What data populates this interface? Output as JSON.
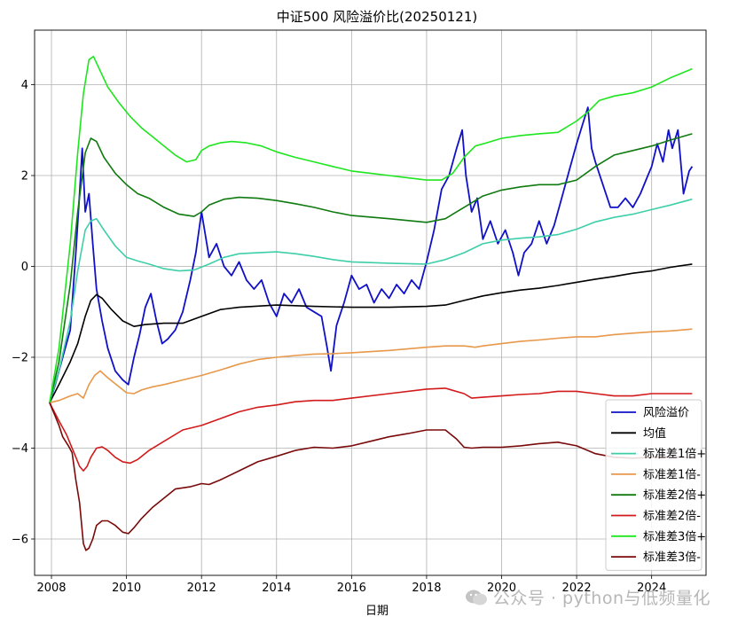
{
  "chart_data": {
    "type": "line",
    "title": "中证500 风险溢价比(20250121)",
    "xlabel": "日期",
    "ylabel": "",
    "xlim": [
      2007.55,
      2025.45
    ],
    "ylim": [
      -6.8,
      5.2
    ],
    "xticks": [
      2008,
      2010,
      2012,
      2014,
      2016,
      2018,
      2020,
      2022,
      2024
    ],
    "yticks": [
      -6,
      -4,
      -2,
      0,
      2,
      4
    ],
    "grid": true,
    "legend_position": "lower-right",
    "series": [
      {
        "name": "风险溢价",
        "color": "#1010c8",
        "x": [
          2007.95,
          2008.1,
          2008.3,
          2008.5,
          2008.65,
          2008.75,
          2008.82,
          2008.9,
          2009.0,
          2009.1,
          2009.2,
          2009.35,
          2009.5,
          2009.7,
          2009.9,
          2010.05,
          2010.2,
          2010.35,
          2010.5,
          2010.65,
          2010.8,
          2010.95,
          2011.1,
          2011.3,
          2011.5,
          2011.7,
          2011.85,
          2012.0,
          2012.2,
          2012.4,
          2012.6,
          2012.8,
          2013.0,
          2013.2,
          2013.4,
          2013.6,
          2013.8,
          2014.0,
          2014.2,
          2014.4,
          2014.6,
          2014.8,
          2015.0,
          2015.2,
          2015.35,
          2015.45,
          2015.6,
          2015.8,
          2016.0,
          2016.2,
          2016.4,
          2016.6,
          2016.8,
          2017.0,
          2017.2,
          2017.4,
          2017.6,
          2017.8,
          2018.0,
          2018.2,
          2018.4,
          2018.6,
          2018.8,
          2018.95,
          2019.05,
          2019.2,
          2019.35,
          2019.5,
          2019.7,
          2019.9,
          2020.1,
          2020.3,
          2020.45,
          2020.6,
          2020.8,
          2021.0,
          2021.2,
          2021.4,
          2021.6,
          2021.8,
          2022.0,
          2022.15,
          2022.3,
          2022.4,
          2022.5,
          2022.7,
          2022.9,
          2023.1,
          2023.3,
          2023.5,
          2023.7,
          2023.9,
          2024.0,
          2024.15,
          2024.3,
          2024.45,
          2024.55,
          2024.7,
          2024.85,
          2025.0,
          2025.08
        ],
        "values": [
          -3.0,
          -2.6,
          -2.0,
          -1.4,
          0.3,
          1.6,
          2.6,
          1.2,
          1.6,
          0.5,
          -0.5,
          -1.2,
          -1.8,
          -2.3,
          -2.5,
          -2.6,
          -2.0,
          -1.5,
          -0.9,
          -0.6,
          -1.2,
          -1.7,
          -1.6,
          -1.4,
          -1.0,
          -0.3,
          0.3,
          1.2,
          0.2,
          0.5,
          0.0,
          -0.2,
          0.1,
          -0.3,
          -0.5,
          -0.3,
          -0.8,
          -1.1,
          -0.6,
          -0.8,
          -0.5,
          -0.9,
          -1.0,
          -1.1,
          -1.8,
          -2.3,
          -1.3,
          -0.8,
          -0.2,
          -0.5,
          -0.4,
          -0.8,
          -0.5,
          -0.7,
          -0.4,
          -0.6,
          -0.3,
          -0.5,
          0.1,
          0.8,
          1.7,
          2.0,
          2.6,
          3.0,
          2.0,
          1.2,
          1.5,
          0.6,
          1.0,
          0.5,
          0.8,
          0.3,
          -0.2,
          0.3,
          0.5,
          1.0,
          0.5,
          0.9,
          1.5,
          2.1,
          2.7,
          3.1,
          3.5,
          2.6,
          2.3,
          1.8,
          1.3,
          1.3,
          1.5,
          1.3,
          1.6,
          2.0,
          2.2,
          2.7,
          2.3,
          3.0,
          2.6,
          3.0,
          1.6,
          2.1,
          2.2
        ]
      },
      {
        "name": "均值",
        "color": "#000000",
        "x": [
          2007.95,
          2008.2,
          2008.5,
          2008.7,
          2008.9,
          2009.05,
          2009.2,
          2009.35,
          2009.6,
          2009.9,
          2010.2,
          2010.5,
          2011.0,
          2011.5,
          2012.0,
          2012.5,
          2013.0,
          2014.0,
          2015.0,
          2016.0,
          2017.0,
          2018.0,
          2018.5,
          2019.0,
          2019.5,
          2020.0,
          2020.5,
          2021.0,
          2021.5,
          2022.0,
          2022.5,
          2023.0,
          2023.5,
          2024.0,
          2024.5,
          2025.08
        ],
        "values": [
          -3.0,
          -2.6,
          -2.1,
          -1.7,
          -1.1,
          -0.75,
          -0.62,
          -0.7,
          -0.95,
          -1.2,
          -1.32,
          -1.28,
          -1.25,
          -1.25,
          -1.1,
          -0.95,
          -0.9,
          -0.85,
          -0.88,
          -0.9,
          -0.9,
          -0.88,
          -0.85,
          -0.75,
          -0.65,
          -0.58,
          -0.52,
          -0.48,
          -0.42,
          -0.35,
          -0.28,
          -0.22,
          -0.15,
          -0.1,
          -0.02,
          0.05
        ]
      },
      {
        "name": "标准差1倍+",
        "color": "#3ecfa8",
        "x": [
          2007.95,
          2008.2,
          2008.5,
          2008.7,
          2008.9,
          2009.05,
          2009.2,
          2009.4,
          2009.7,
          2010.0,
          2010.3,
          2010.6,
          2011.0,
          2011.4,
          2011.8,
          2012.2,
          2012.6,
          2013.0,
          2013.5,
          2014.0,
          2014.5,
          2015.0,
          2015.5,
          2016.0,
          2017.0,
          2018.0,
          2018.5,
          2019.0,
          2019.5,
          2020.0,
          2020.5,
          2021.0,
          2021.5,
          2022.0,
          2022.5,
          2023.0,
          2023.5,
          2024.0,
          2024.5,
          2025.08
        ],
        "values": [
          -3.0,
          -2.3,
          -1.2,
          -0.1,
          0.8,
          1.0,
          1.05,
          0.8,
          0.45,
          0.2,
          0.12,
          0.05,
          -0.05,
          -0.1,
          -0.08,
          0.05,
          0.2,
          0.28,
          0.3,
          0.32,
          0.28,
          0.22,
          0.15,
          0.1,
          0.07,
          0.05,
          0.15,
          0.3,
          0.5,
          0.58,
          0.62,
          0.65,
          0.7,
          0.82,
          0.98,
          1.08,
          1.15,
          1.25,
          1.35,
          1.48
        ]
      },
      {
        "name": "标准差1倍-",
        "color": "#e8984a",
        "x": [
          2007.95,
          2008.2,
          2008.5,
          2008.7,
          2008.85,
          2009.0,
          2009.15,
          2009.3,
          2009.5,
          2009.8,
          2010.0,
          2010.2,
          2010.4,
          2010.7,
          2011.0,
          2011.5,
          2012.0,
          2012.5,
          2013.0,
          2013.5,
          2014.0,
          2014.5,
          2015.0,
          2015.5,
          2016.0,
          2017.0,
          2018.0,
          2018.5,
          2019.0,
          2019.3,
          2019.5,
          2020.0,
          2020.5,
          2021.0,
          2021.5,
          2022.0,
          2022.5,
          2023.0,
          2023.5,
          2024.0,
          2024.5,
          2025.08
        ],
        "values": [
          -3.0,
          -2.95,
          -2.85,
          -2.8,
          -2.9,
          -2.6,
          -2.4,
          -2.3,
          -2.45,
          -2.65,
          -2.78,
          -2.8,
          -2.72,
          -2.65,
          -2.6,
          -2.5,
          -2.4,
          -2.28,
          -2.15,
          -2.05,
          -2.0,
          -1.96,
          -1.93,
          -1.92,
          -1.9,
          -1.85,
          -1.78,
          -1.75,
          -1.75,
          -1.78,
          -1.75,
          -1.7,
          -1.65,
          -1.62,
          -1.58,
          -1.55,
          -1.55,
          -1.5,
          -1.47,
          -1.44,
          -1.42,
          -1.38
        ]
      },
      {
        "name": "标准差2倍+",
        "color": "#0f7a0f",
        "x": [
          2007.95,
          2008.2,
          2008.5,
          2008.7,
          2008.9,
          2009.05,
          2009.2,
          2009.4,
          2009.7,
          2010.0,
          2010.3,
          2010.6,
          2011.0,
          2011.4,
          2011.8,
          2012.0,
          2012.2,
          2012.6,
          2013.0,
          2013.5,
          2014.0,
          2014.5,
          2015.0,
          2015.5,
          2016.0,
          2017.0,
          2018.0,
          2018.5,
          2019.0,
          2019.5,
          2020.0,
          2020.5,
          2021.0,
          2021.5,
          2022.0,
          2022.5,
          2023.0,
          2023.5,
          2024.0,
          2024.5,
          2025.08
        ],
        "values": [
          -3.0,
          -2.1,
          -0.4,
          1.2,
          2.5,
          2.82,
          2.75,
          2.4,
          2.05,
          1.8,
          1.6,
          1.5,
          1.3,
          1.15,
          1.1,
          1.2,
          1.35,
          1.48,
          1.52,
          1.5,
          1.45,
          1.38,
          1.3,
          1.2,
          1.12,
          1.05,
          0.97,
          1.05,
          1.3,
          1.55,
          1.68,
          1.75,
          1.8,
          1.8,
          1.9,
          2.2,
          2.45,
          2.55,
          2.65,
          2.78,
          2.92
        ]
      },
      {
        "name": "标准差2倍-",
        "color": "#d21a1a",
        "x": [
          2007.95,
          2008.2,
          2008.4,
          2008.6,
          2008.75,
          2008.85,
          2008.95,
          2009.05,
          2009.2,
          2009.35,
          2009.5,
          2009.7,
          2009.9,
          2010.1,
          2010.3,
          2010.6,
          2011.0,
          2011.5,
          2012.0,
          2012.5,
          2013.0,
          2013.5,
          2014.0,
          2014.5,
          2015.0,
          2015.5,
          2016.0,
          2017.0,
          2018.0,
          2018.5,
          2019.0,
          2019.2,
          2019.5,
          2020.0,
          2020.5,
          2021.0,
          2021.5,
          2022.0,
          2022.5,
          2023.0,
          2023.5,
          2024.0,
          2024.5,
          2025.08
        ],
        "values": [
          -3.0,
          -3.4,
          -3.7,
          -4.1,
          -4.4,
          -4.5,
          -4.4,
          -4.2,
          -4.0,
          -3.97,
          -4.05,
          -4.2,
          -4.3,
          -4.33,
          -4.25,
          -4.05,
          -3.85,
          -3.6,
          -3.5,
          -3.35,
          -3.2,
          -3.1,
          -3.05,
          -2.98,
          -2.95,
          -2.95,
          -2.9,
          -2.8,
          -2.7,
          -2.68,
          -2.8,
          -2.9,
          -2.88,
          -2.85,
          -2.82,
          -2.8,
          -2.75,
          -2.75,
          -2.8,
          -2.85,
          -2.85,
          -2.8,
          -2.8,
          -2.8
        ]
      },
      {
        "name": "标准差3倍+",
        "color": "#1ee61e",
        "x": [
          2007.95,
          2008.2,
          2008.5,
          2008.7,
          2008.85,
          2009.0,
          2009.12,
          2009.3,
          2009.5,
          2009.8,
          2010.1,
          2010.4,
          2010.7,
          2011.0,
          2011.3,
          2011.6,
          2011.85,
          2012.0,
          2012.2,
          2012.5,
          2012.8,
          2013.2,
          2013.6,
          2014.0,
          2014.5,
          2015.0,
          2015.5,
          2016.0,
          2016.5,
          2017.0,
          2017.5,
          2018.0,
          2018.4,
          2018.7,
          2019.0,
          2019.3,
          2019.6,
          2020.0,
          2020.5,
          2021.0,
          2021.5,
          2022.0,
          2022.3,
          2022.6,
          2023.0,
          2023.5,
          2024.0,
          2024.5,
          2025.08
        ],
        "values": [
          -3.0,
          -1.8,
          0.5,
          2.5,
          3.8,
          4.55,
          4.62,
          4.3,
          3.95,
          3.6,
          3.3,
          3.05,
          2.85,
          2.65,
          2.45,
          2.3,
          2.35,
          2.55,
          2.65,
          2.72,
          2.75,
          2.72,
          2.65,
          2.52,
          2.4,
          2.3,
          2.2,
          2.1,
          2.05,
          2.0,
          1.95,
          1.9,
          1.9,
          2.05,
          2.4,
          2.65,
          2.72,
          2.82,
          2.88,
          2.92,
          2.95,
          3.2,
          3.4,
          3.65,
          3.75,
          3.82,
          3.95,
          4.15,
          4.35
        ]
      },
      {
        "name": "标准差3倍-",
        "color": "#7a0a0a",
        "x": [
          2007.95,
          2008.1,
          2008.2,
          2008.3,
          2008.45,
          2008.55,
          2008.65,
          2008.75,
          2008.85,
          2008.92,
          2009.0,
          2009.1,
          2009.2,
          2009.35,
          2009.5,
          2009.7,
          2009.9,
          2010.05,
          2010.2,
          2010.4,
          2010.7,
          2011.0,
          2011.3,
          2011.7,
          2012.0,
          2012.2,
          2012.5,
          2013.0,
          2013.5,
          2014.0,
          2014.5,
          2015.0,
          2015.5,
          2016.0,
          2016.5,
          2017.0,
          2017.5,
          2018.0,
          2018.5,
          2018.8,
          2019.0,
          2019.2,
          2019.5,
          2020.0,
          2020.5,
          2021.0,
          2021.5,
          2022.0,
          2022.5,
          2023.0,
          2023.5,
          2024.0,
          2024.5,
          2025.08
        ],
        "values": [
          -3.0,
          -3.3,
          -3.5,
          -3.75,
          -3.95,
          -4.1,
          -4.7,
          -5.2,
          -6.1,
          -6.25,
          -6.2,
          -6.0,
          -5.7,
          -5.6,
          -5.6,
          -5.7,
          -5.85,
          -5.88,
          -5.75,
          -5.55,
          -5.3,
          -5.1,
          -4.9,
          -4.85,
          -4.78,
          -4.8,
          -4.7,
          -4.5,
          -4.3,
          -4.18,
          -4.05,
          -3.98,
          -4.0,
          -3.95,
          -3.85,
          -3.75,
          -3.68,
          -3.6,
          -3.6,
          -3.8,
          -3.98,
          -4.0,
          -3.98,
          -3.98,
          -3.95,
          -3.9,
          -3.87,
          -3.95,
          -4.12,
          -4.2,
          -4.22,
          -4.2,
          -4.2,
          -4.2
        ]
      }
    ]
  },
  "watermark": {
    "icon": "wechat-icon",
    "text": "公众号 · python与低频量化"
  }
}
